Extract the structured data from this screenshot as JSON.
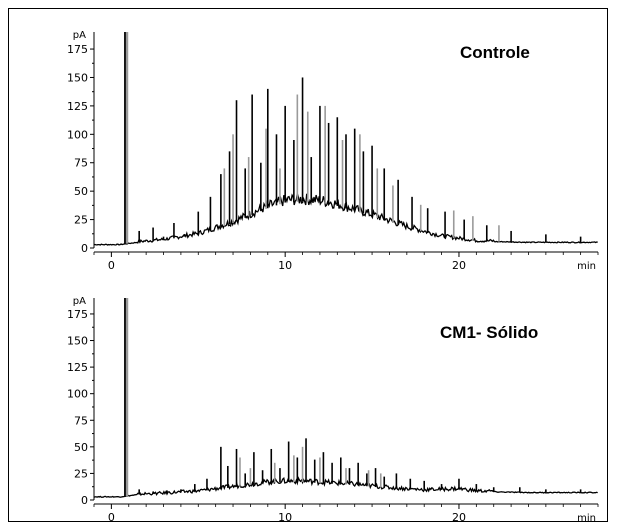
{
  "chart_data": [
    {
      "type": "line",
      "title": "Controle",
      "ylabel": "pA",
      "xlabel": "min",
      "xlim": [
        -1,
        28
      ],
      "ylim": [
        0,
        190
      ],
      "xticks": [
        "0",
        "10",
        "20"
      ],
      "yticks": [
        "0",
        "25",
        "50",
        "75",
        "100",
        "125",
        "150",
        "175"
      ],
      "baseline": [
        [
          -1,
          3
        ],
        [
          0.5,
          3
        ],
        [
          1.5,
          5
        ],
        [
          3,
          7
        ],
        [
          5,
          12
        ],
        [
          7,
          22
        ],
        [
          9,
          35
        ],
        [
          10,
          40
        ],
        [
          11,
          41
        ],
        [
          12,
          40
        ],
        [
          13,
          37
        ],
        [
          15,
          28
        ],
        [
          17,
          18
        ],
        [
          19,
          10
        ],
        [
          21,
          6
        ],
        [
          24,
          5
        ],
        [
          28,
          5
        ]
      ],
      "series": [
        {
          "name": "peaks_black",
          "color": "#000000",
          "x": [
            0.8,
            1.6,
            2.4,
            3.0,
            3.6,
            4.2,
            5.0,
            5.7,
            6.3,
            6.8,
            7.2,
            7.7,
            8.1,
            8.6,
            9.0,
            9.5,
            10.0,
            10.5,
            11.0,
            11.5,
            12.0,
            12.5,
            13.0,
            13.5,
            14.0,
            14.5,
            15.0,
            15.7,
            16.5,
            17.3,
            18.2,
            19.2,
            20.3,
            21.6,
            23.0,
            25.0,
            27.0
          ],
          "values": [
            195,
            15,
            18,
            10,
            22,
            12,
            32,
            45,
            65,
            85,
            130,
            70,
            135,
            75,
            140,
            100,
            125,
            95,
            150,
            80,
            125,
            110,
            115,
            100,
            105,
            85,
            90,
            70,
            60,
            45,
            35,
            32,
            25,
            20,
            15,
            12,
            10
          ]
        },
        {
          "name": "peaks_gray",
          "color": "#9a9a9a",
          "x": [
            0.9,
            6.5,
            7.0,
            7.9,
            8.9,
            9.7,
            10.7,
            11.3,
            12.3,
            13.3,
            14.3,
            15.3,
            16.2,
            17.8,
            19.7,
            20.8,
            22.3
          ],
          "values": [
            190,
            70,
            100,
            80,
            105,
            70,
            135,
            120,
            125,
            95,
            100,
            70,
            55,
            38,
            33,
            28,
            20
          ]
        }
      ]
    },
    {
      "type": "line",
      "title": "CM1- Sólido",
      "ylabel": "pA",
      "xlabel": "min",
      "xlim": [
        -1,
        28
      ],
      "ylim": [
        0,
        190
      ],
      "xticks": [
        "0",
        "10",
        "20"
      ],
      "yticks": [
        "0",
        "25",
        "50",
        "75",
        "100",
        "125",
        "150",
        "175"
      ],
      "baseline": [
        [
          -1,
          3
        ],
        [
          0.5,
          3
        ],
        [
          1.5,
          5
        ],
        [
          3,
          6
        ],
        [
          5,
          8
        ],
        [
          7,
          12
        ],
        [
          9,
          16
        ],
        [
          10,
          17
        ],
        [
          11,
          17
        ],
        [
          12,
          16
        ],
        [
          14,
          14
        ],
        [
          16,
          11
        ],
        [
          18,
          9
        ],
        [
          20,
          10
        ],
        [
          21,
          8
        ],
        [
          24,
          7
        ],
        [
          28,
          7
        ]
      ],
      "series": [
        {
          "name": "peaks_black",
          "color": "#000000",
          "x": [
            0.8,
            1.6,
            2.4,
            3.2,
            4.0,
            4.8,
            5.5,
            6.3,
            6.7,
            7.2,
            7.7,
            8.2,
            8.7,
            9.2,
            9.7,
            10.2,
            10.7,
            11.2,
            11.7,
            12.2,
            12.7,
            13.2,
            13.7,
            14.2,
            14.7,
            15.2,
            15.7,
            16.4,
            17.2,
            18.0,
            19.0,
            20.0,
            21.0,
            22.0,
            23.5,
            25.0,
            27.0
          ],
          "values": [
            195,
            10,
            8,
            9,
            10,
            15,
            20,
            50,
            32,
            48,
            25,
            45,
            28,
            48,
            30,
            55,
            40,
            58,
            38,
            45,
            35,
            40,
            30,
            35,
            25,
            30,
            22,
            25,
            20,
            18,
            15,
            20,
            15,
            12,
            12,
            10,
            10
          ]
        },
        {
          "name": "peaks_gray",
          "color": "#9a9a9a",
          "x": [
            0.9,
            7.4,
            8.0,
            9.4,
            10.5,
            11.0,
            12.0,
            13.5,
            14.8,
            15.5
          ],
          "values": [
            190,
            40,
            30,
            35,
            42,
            50,
            40,
            30,
            28,
            25
          ]
        }
      ]
    }
  ]
}
